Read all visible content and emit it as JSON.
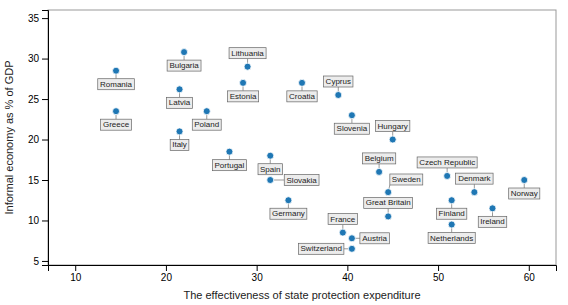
{
  "chart_data": {
    "type": "scatter",
    "x_label": "The effectiveness of state protection expenditure",
    "y_label": "Informal economy as % of GDP",
    "labels": [
      "Romania",
      "Greece",
      "Bulgaria",
      "Latvia",
      "Italy",
      "Poland",
      "Lithuania",
      "Estonia",
      "Portugal",
      "Spain",
      "Slovakia",
      "Germany",
      "Croatia",
      "Cyprus",
      "Slovenia",
      "France",
      "Austria",
      "Switzerland",
      "Belgium",
      "Hungary",
      "Great Britain",
      "Sweden",
      "Czech Republic",
      "Netherlands",
      "Finland",
      "Denmark",
      "Ireland",
      "Norway"
    ],
    "x": [
      14.5,
      14.5,
      22.0,
      21.5,
      21.5,
      24.5,
      29.0,
      28.5,
      27.0,
      31.5,
      31.5,
      33.5,
      35.0,
      39.0,
      40.5,
      39.5,
      40.5,
      40.5,
      43.5,
      45.0,
      44.5,
      44.5,
      51.0,
      51.5,
      51.5,
      54.0,
      56.0,
      59.5
    ],
    "values": [
      28.5,
      23.5,
      30.8,
      26.2,
      21.0,
      23.5,
      29.0,
      27.0,
      18.5,
      18.0,
      15.0,
      12.5,
      27.0,
      25.5,
      23.0,
      8.5,
      7.8,
      6.5,
      16.0,
      20.0,
      10.5,
      13.5,
      15.5,
      9.5,
      12.5,
      13.5,
      11.5,
      15.0
    ],
    "xlim": [
      7,
      63
    ],
    "ylim": [
      4.5,
      36.0
    ],
    "xticks": [
      10,
      20,
      30,
      40,
      50,
      60
    ],
    "yticks": [
      5,
      10,
      15,
      20,
      25,
      30,
      35
    ],
    "grid": false
  }
}
